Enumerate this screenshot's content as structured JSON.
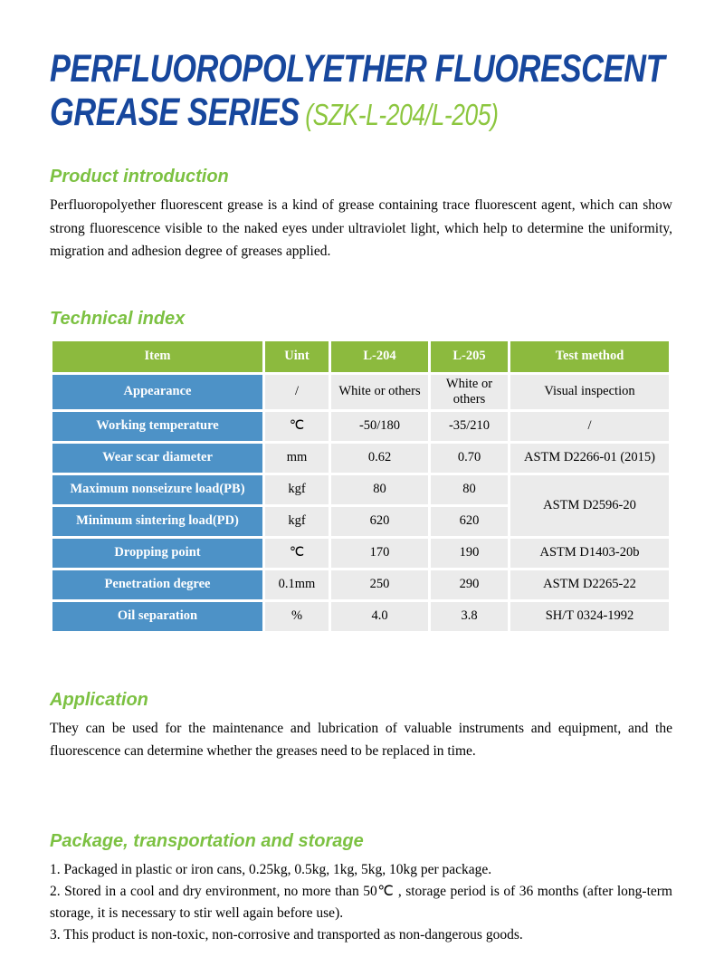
{
  "title": {
    "line1": "PERFLUOROPOLYETHER FLUORESCENT",
    "line2": "GREASE SERIES",
    "code": "(SZK-L-204/L-205)"
  },
  "colors": {
    "title_blue": "#17479D",
    "heading_green": "#7CC142",
    "code_green": "#8CC63F",
    "table_header_green": "#8CBA3E",
    "table_item_blue": "#4D92C7",
    "table_cell_gray": "#EBEBEB"
  },
  "sections": {
    "product_introduction": {
      "heading": "Product introduction",
      "body": "Perfluoropolyether fluorescent grease is a kind of grease containing trace fluorescent agent, which can show strong fluorescence visible to the naked eyes under ultraviolet light, which help to determine the uniformity, migration and adhesion degree of greases applied."
    },
    "technical_index": {
      "heading": "Technical index",
      "table": {
        "columns": [
          "Item",
          "Uint",
          "L-204",
          "L-205",
          "Test method"
        ],
        "rows": [
          {
            "cells": [
              "Appearance",
              "/",
              "White or others",
              "White or others",
              "Visual inspection"
            ]
          },
          {
            "cells": [
              "Working temperature",
              "℃",
              "-50/180",
              "-35/210",
              "/"
            ]
          },
          {
            "cells": [
              "Wear scar diameter",
              "mm",
              "0.62",
              "0.70",
              "ASTM D2266-01  (2015)"
            ]
          },
          {
            "cells": [
              "Maximum nonseizure load(PB)",
              "kgf",
              "80",
              "80",
              "ASTM D2596-20"
            ],
            "method_rowspan": 2,
            "unit_align": "top"
          },
          {
            "cells": [
              "Minimum sintering load(PD)",
              "kgf",
              "620",
              "620"
            ],
            "unit_align": "top"
          },
          {
            "cells": [
              "Dropping point",
              "℃",
              "170",
              "190",
              "ASTM D1403-20b"
            ]
          },
          {
            "cells": [
              "Penetration degree",
              "0.1mm",
              "250",
              "290",
              "ASTM D2265-22"
            ]
          },
          {
            "cells": [
              "Oil separation",
              "%",
              "4.0",
              "3.8",
              "SH/T 0324-1992"
            ]
          }
        ]
      }
    },
    "application": {
      "heading": "Application",
      "body": "They can be used for the maintenance and lubrication of valuable instruments and equipment, and the fluorescence can determine whether the greases need to be replaced in time."
    },
    "package": {
      "heading": "Package, transportation and storage",
      "items": [
        "1. Packaged in plastic or iron cans, 0.25kg, 0.5kg, 1kg, 5kg, 10kg per package.",
        "2. Stored in a cool and dry environment, no more than 50℃ , storage period is of 36 months (after long-term storage, it is necessary to stir well again before use).",
        "3. This product is non-toxic, non-corrosive and transported as non-dangerous goods."
      ]
    }
  }
}
